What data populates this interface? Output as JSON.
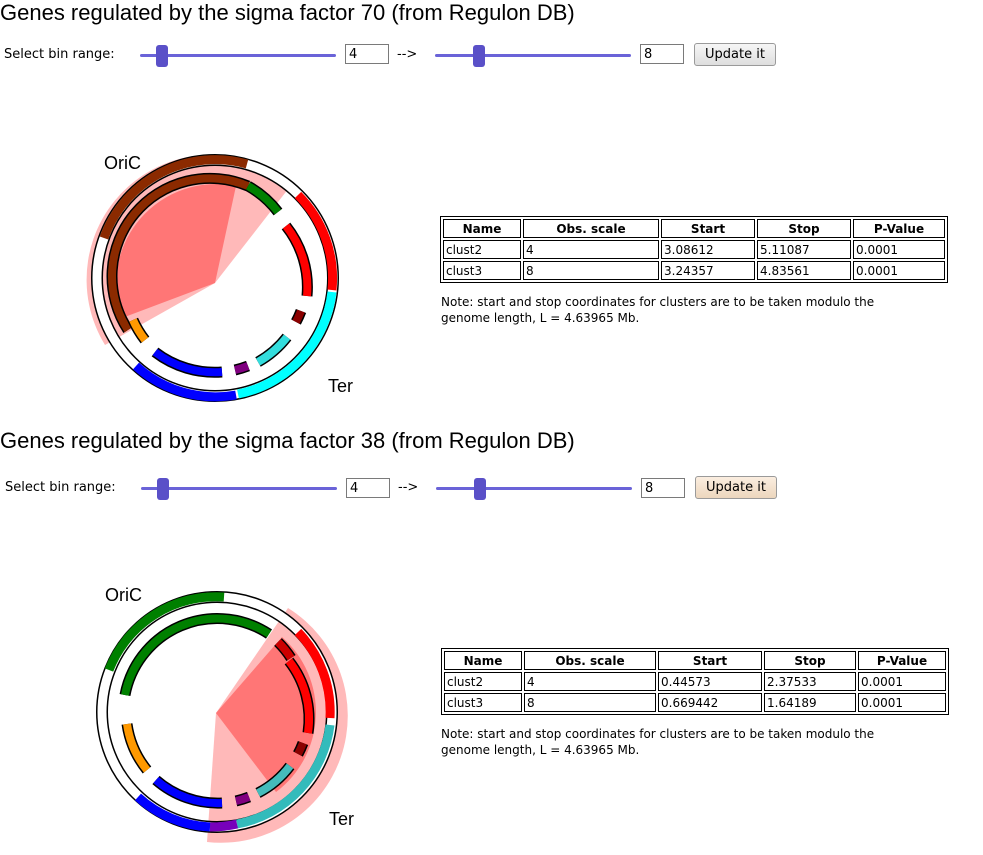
{
  "panels": [
    {
      "title": "Genes regulated by the sigma factor 70 (from Regulon DB)",
      "bin_label": "Select bin range:",
      "from_value": "4",
      "arrow": "-->",
      "to_value": "8",
      "update_label": "Update it",
      "origin_label": "OriC",
      "terminus_label": "Ter",
      "table": {
        "headers": [
          "Name",
          "Obs. scale",
          "Start",
          "Stop",
          "P-Value"
        ],
        "rows": [
          [
            "clust2",
            "4",
            "3.08612",
            "5.11087",
            "0.0001"
          ],
          [
            "clust3",
            "8",
            "3.24357",
            "4.83561",
            "0.0001"
          ]
        ]
      },
      "note": "Note: start and stop coordinates for clusters are to be taken modulo the genome length, L = 4.63965 Mb."
    },
    {
      "title": "Genes regulated by the sigma factor 38 (from Regulon DB)",
      "bin_label": "Select bin range:",
      "from_value": "4",
      "arrow": "-->",
      "to_value": "8",
      "update_label": "Update it",
      "origin_label": "OriC",
      "terminus_label": "Ter",
      "table": {
        "headers": [
          "Name",
          "Obs. scale",
          "Start",
          "Stop",
          "P-Value"
        ],
        "rows": [
          [
            "clust2",
            "4",
            "0.44573",
            "2.37533",
            "0.0001"
          ],
          [
            "clust3",
            "8",
            "0.669442",
            "1.64189",
            "0.0001"
          ]
        ]
      },
      "note": "Note: start and stop coordinates for clusters are to be taken modulo the genome length, L = 4.63965 Mb."
    }
  ]
}
